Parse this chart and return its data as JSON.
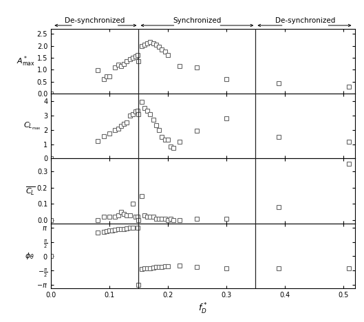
{
  "vline1": 0.15,
  "vline2": 0.35,
  "xlim": [
    0.0,
    0.52
  ],
  "xticks": [
    0.0,
    0.1,
    0.2,
    0.3,
    0.4,
    0.5
  ],
  "A_data": [
    [
      0.0,
      0.0
    ],
    [
      0.08,
      0.97
    ],
    [
      0.09,
      0.6
    ],
    [
      0.095,
      0.73
    ],
    [
      0.1,
      0.73
    ],
    [
      0.11,
      1.1
    ],
    [
      0.115,
      1.2
    ],
    [
      0.12,
      1.15
    ],
    [
      0.125,
      1.25
    ],
    [
      0.13,
      1.35
    ],
    [
      0.135,
      1.45
    ],
    [
      0.14,
      1.5
    ],
    [
      0.145,
      1.55
    ],
    [
      0.148,
      1.6
    ],
    [
      0.15,
      1.35
    ],
    [
      0.155,
      2.0
    ],
    [
      0.16,
      2.05
    ],
    [
      0.165,
      2.1
    ],
    [
      0.17,
      2.15
    ],
    [
      0.175,
      2.1
    ],
    [
      0.18,
      2.05
    ],
    [
      0.185,
      1.95
    ],
    [
      0.19,
      1.85
    ],
    [
      0.195,
      1.75
    ],
    [
      0.2,
      1.6
    ],
    [
      0.22,
      1.15
    ],
    [
      0.25,
      1.1
    ],
    [
      0.3,
      0.6
    ],
    [
      0.39,
      0.45
    ],
    [
      0.51,
      0.3
    ]
  ],
  "CL_data": [
    [
      0.0,
      0.0
    ],
    [
      0.08,
      1.2
    ],
    [
      0.09,
      1.55
    ],
    [
      0.1,
      1.75
    ],
    [
      0.11,
      2.0
    ],
    [
      0.115,
      2.1
    ],
    [
      0.12,
      2.25
    ],
    [
      0.125,
      2.4
    ],
    [
      0.13,
      2.5
    ],
    [
      0.135,
      3.0
    ],
    [
      0.14,
      3.1
    ],
    [
      0.145,
      3.25
    ],
    [
      0.148,
      3.3
    ],
    [
      0.15,
      3.1
    ],
    [
      0.155,
      3.95
    ],
    [
      0.16,
      3.5
    ],
    [
      0.165,
      3.3
    ],
    [
      0.17,
      3.1
    ],
    [
      0.175,
      2.7
    ],
    [
      0.18,
      2.3
    ],
    [
      0.185,
      2.0
    ],
    [
      0.19,
      1.5
    ],
    [
      0.195,
      1.3
    ],
    [
      0.2,
      1.3
    ],
    [
      0.205,
      0.85
    ],
    [
      0.21,
      0.75
    ],
    [
      0.22,
      1.15
    ],
    [
      0.25,
      1.95
    ],
    [
      0.3,
      2.8
    ],
    [
      0.39,
      1.5
    ],
    [
      0.51,
      1.15
    ]
  ],
  "CLbar_data": [
    [
      0.0,
      0.0
    ],
    [
      0.08,
      0.0
    ],
    [
      0.09,
      0.02
    ],
    [
      0.1,
      0.02
    ],
    [
      0.11,
      0.02
    ],
    [
      0.115,
      0.03
    ],
    [
      0.12,
      0.05
    ],
    [
      0.125,
      0.04
    ],
    [
      0.13,
      0.03
    ],
    [
      0.135,
      0.03
    ],
    [
      0.14,
      0.1
    ],
    [
      0.145,
      0.02
    ],
    [
      0.148,
      0.02
    ],
    [
      0.15,
      0.0
    ],
    [
      0.155,
      0.15
    ],
    [
      0.16,
      0.03
    ],
    [
      0.165,
      0.02
    ],
    [
      0.17,
      0.02
    ],
    [
      0.175,
      0.02
    ],
    [
      0.18,
      0.01
    ],
    [
      0.185,
      0.01
    ],
    [
      0.19,
      0.01
    ],
    [
      0.195,
      0.01
    ],
    [
      0.2,
      0.0
    ],
    [
      0.205,
      0.01
    ],
    [
      0.21,
      0.0
    ],
    [
      0.22,
      0.0
    ],
    [
      0.25,
      0.01
    ],
    [
      0.3,
      0.01
    ],
    [
      0.39,
      0.08
    ],
    [
      0.51,
      0.35
    ]
  ],
  "phi_data": [
    [
      0.0,
      0.0
    ],
    [
      0.08,
      2.6
    ],
    [
      0.09,
      2.65
    ],
    [
      0.095,
      2.75
    ],
    [
      0.1,
      2.8
    ],
    [
      0.105,
      2.85
    ],
    [
      0.11,
      2.9
    ],
    [
      0.115,
      2.95
    ],
    [
      0.12,
      2.95
    ],
    [
      0.125,
      3.0
    ],
    [
      0.13,
      3.05
    ],
    [
      0.135,
      3.1
    ],
    [
      0.14,
      3.1
    ],
    [
      0.148,
      3.14
    ],
    [
      0.15,
      -3.14
    ],
    [
      0.155,
      -1.4
    ],
    [
      0.16,
      -1.35
    ],
    [
      0.165,
      -1.3
    ],
    [
      0.17,
      -1.3
    ],
    [
      0.175,
      -1.25
    ],
    [
      0.18,
      -1.2
    ],
    [
      0.185,
      -1.2
    ],
    [
      0.19,
      -1.2
    ],
    [
      0.195,
      -1.1
    ],
    [
      0.2,
      -1.1
    ],
    [
      0.22,
      -1.05
    ],
    [
      0.25,
      -1.2
    ],
    [
      0.3,
      -1.35
    ],
    [
      0.39,
      -1.35
    ],
    [
      0.51,
      -1.35
    ]
  ],
  "markersize": 4.5,
  "markerfacecolor": "white",
  "markeredgecolor": "#666666",
  "markeredgewidth": 0.8,
  "vline_color": "#222222",
  "vline_lw": 0.9,
  "A_ylim": [
    0.0,
    2.7
  ],
  "A_yticks": [
    0.0,
    0.5,
    1.0,
    1.5,
    2.0,
    2.5
  ],
  "CL_ylim": [
    0.0,
    4.5
  ],
  "CL_yticks": [
    0.0,
    1.0,
    2.0,
    3.0,
    4.0
  ],
  "CLbar_ylim": [
    -0.02,
    0.38
  ],
  "CLbar_yticks": [
    0.0,
    0.1,
    0.2,
    0.3
  ],
  "phi_ylim": [
    -3.5,
    3.6
  ],
  "fontsize_tick": 7,
  "fontsize_label": 8,
  "fontsize_annot": 7.5
}
